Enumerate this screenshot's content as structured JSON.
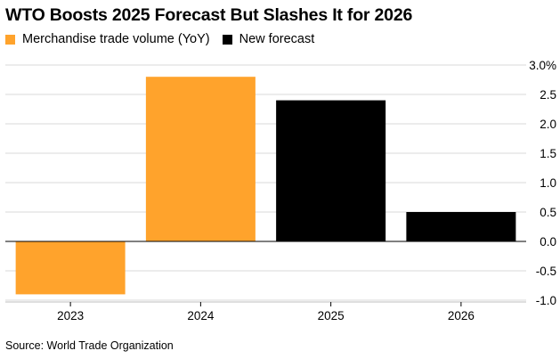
{
  "title": "WTO Boosts 2025 Forecast But Slashes It for 2026",
  "legend": [
    {
      "label": "Merchandise trade volume (YoY)",
      "color": "#FFA32C"
    },
    {
      "label": "New forecast",
      "color": "#000000"
    }
  ],
  "source": "Source: World Trade Organization",
  "chart_data": {
    "type": "bar",
    "title": "WTO Boosts 2025 Forecast But Slashes It for 2026",
    "xlabel": "",
    "ylabel": "",
    "categories": [
      "2023",
      "2024",
      "2025",
      "2026"
    ],
    "values": [
      -0.9,
      2.8,
      2.4,
      0.5
    ],
    "series_of_bar": [
      "Merchandise trade volume (YoY)",
      "Merchandise trade volume (YoY)",
      "New forecast",
      "New forecast"
    ],
    "ylim": [
      -1.1,
      3.0
    ],
    "yticks": [
      3.0,
      2.5,
      2.0,
      1.5,
      1.0,
      0.5,
      0.0,
      -0.5,
      -1.0
    ],
    "ytick_labels": [
      "3.0%",
      "2.5",
      "2.0",
      "1.5",
      "1.0",
      "0.5",
      "0.0",
      "-0.5",
      "-1.0"
    ],
    "grid": true,
    "legend_position": "top-left",
    "y_axis_position": "right"
  }
}
